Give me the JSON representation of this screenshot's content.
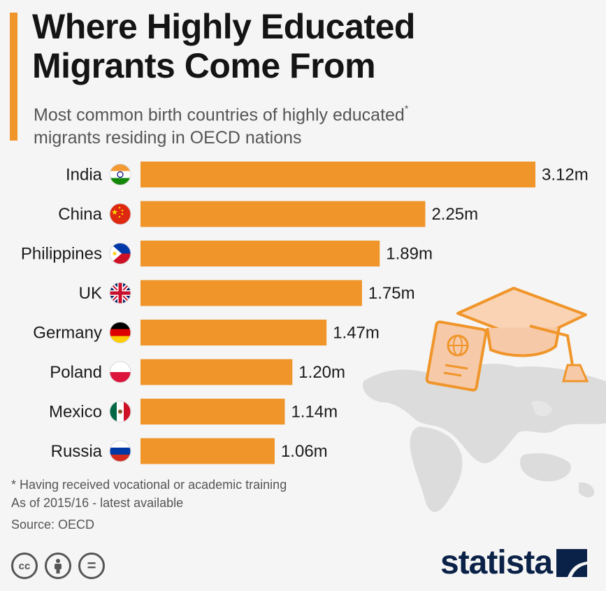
{
  "title_lines": [
    "Where Highly Educated",
    "Migrants Come From"
  ],
  "subtitle_lines": [
    "Most common birth countries of highly educated",
    "migrants residing in OECD nations"
  ],
  "subtitle_mark": "*",
  "colors": {
    "accent": "#f0952a",
    "bar": "#f0952a",
    "brand": "#0b2248"
  },
  "chart_data": {
    "type": "bar",
    "orientation": "horizontal",
    "categories": [
      "India",
      "China",
      "Philippines",
      "UK",
      "Germany",
      "Poland",
      "Mexico",
      "Russia"
    ],
    "values": [
      3.12,
      2.25,
      1.89,
      1.75,
      1.47,
      1.2,
      1.14,
      1.06
    ],
    "value_labels": [
      "3.12m",
      "2.25m",
      "1.89m",
      "1.75m",
      "1.47m",
      "1.20m",
      "1.14m",
      "1.06m"
    ],
    "flags": [
      "india-flag-icon",
      "china-flag-icon",
      "philippines-flag-icon",
      "uk-flag-icon",
      "germany-flag-icon",
      "poland-flag-icon",
      "mexico-flag-icon",
      "russia-flag-icon"
    ],
    "xlim": [
      0,
      3.12
    ],
    "grid": false,
    "title": "",
    "xlabel": "",
    "ylabel": ""
  },
  "footnotes": {
    "definition": "* Having received vocational or academic training",
    "period": "As of 2015/16 - latest available",
    "source": "Source: OECD"
  },
  "license_icons": [
    "cc-icon",
    "attribution-icon",
    "no-derivatives-icon"
  ],
  "license_labels": {
    "cc": "cc",
    "nd": "="
  },
  "brand": {
    "name": "statista",
    "icon": "statista-logo-icon"
  }
}
